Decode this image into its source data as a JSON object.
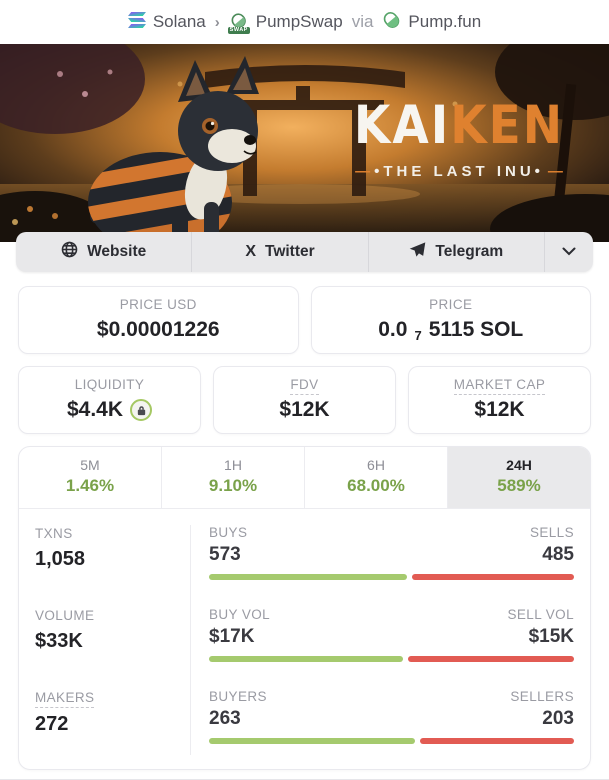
{
  "colors": {
    "accent_orange": "#df812f",
    "green_text": "#7aa24a",
    "green_bar": "#a5ca6e",
    "red_bar": "#e25b53",
    "lock_ring_green": "#a5c863",
    "solana_purple": "#9945ff",
    "solana_teal": "#14f195"
  },
  "breadcrumb": {
    "chain": "Solana",
    "chevron": "›",
    "dex": "PumpSwap",
    "dex_badge": "SWAP",
    "via": "via",
    "launchpad": "Pump.fun"
  },
  "banner": {
    "logo_white": "KAI",
    "logo_orange": "KEN",
    "dash": "—",
    "tagline": "•THE LAST INU•"
  },
  "links": {
    "website": "Website",
    "twitter_icon": "X",
    "twitter": "Twitter",
    "telegram": "Telegram"
  },
  "price": {
    "usd_label": "PRICE USD",
    "usd_value": "$0.00001226",
    "sol_label": "PRICE",
    "sol_prefix": "0.0",
    "sol_sub": "7",
    "sol_suffix": "5115 SOL"
  },
  "metrics": [
    {
      "label": "LIQUIDITY",
      "value": "$4.4K"
    },
    {
      "label": "FDV",
      "value": "$12K"
    },
    {
      "label": "MARKET CAP",
      "value": "$12K"
    }
  ],
  "timeframes": [
    {
      "label": "5M",
      "change": "1.46%"
    },
    {
      "label": "1H",
      "change": "9.10%"
    },
    {
      "label": "6H",
      "change": "68.00%"
    },
    {
      "label": "24H",
      "change": "589%"
    }
  ],
  "stats": {
    "rows": [
      {
        "key_label": "TXNS",
        "key_value": "1,058",
        "buy_label": "BUYS",
        "buy_value": "573",
        "sell_label": "SELLS",
        "sell_value": "485",
        "buy_pct": 54.2
      },
      {
        "key_label": "VOLUME",
        "key_value": "$33K",
        "buy_label": "BUY VOL",
        "buy_value": "$17K",
        "sell_label": "SELL VOL",
        "sell_value": "$15K",
        "buy_pct": 53.1
      },
      {
        "key_label": "MAKERS",
        "key_value": "272",
        "buy_label": "BUYERS",
        "buy_value": "263",
        "sell_label": "SELLERS",
        "sell_value": "203",
        "buy_pct": 56.4
      }
    ]
  }
}
